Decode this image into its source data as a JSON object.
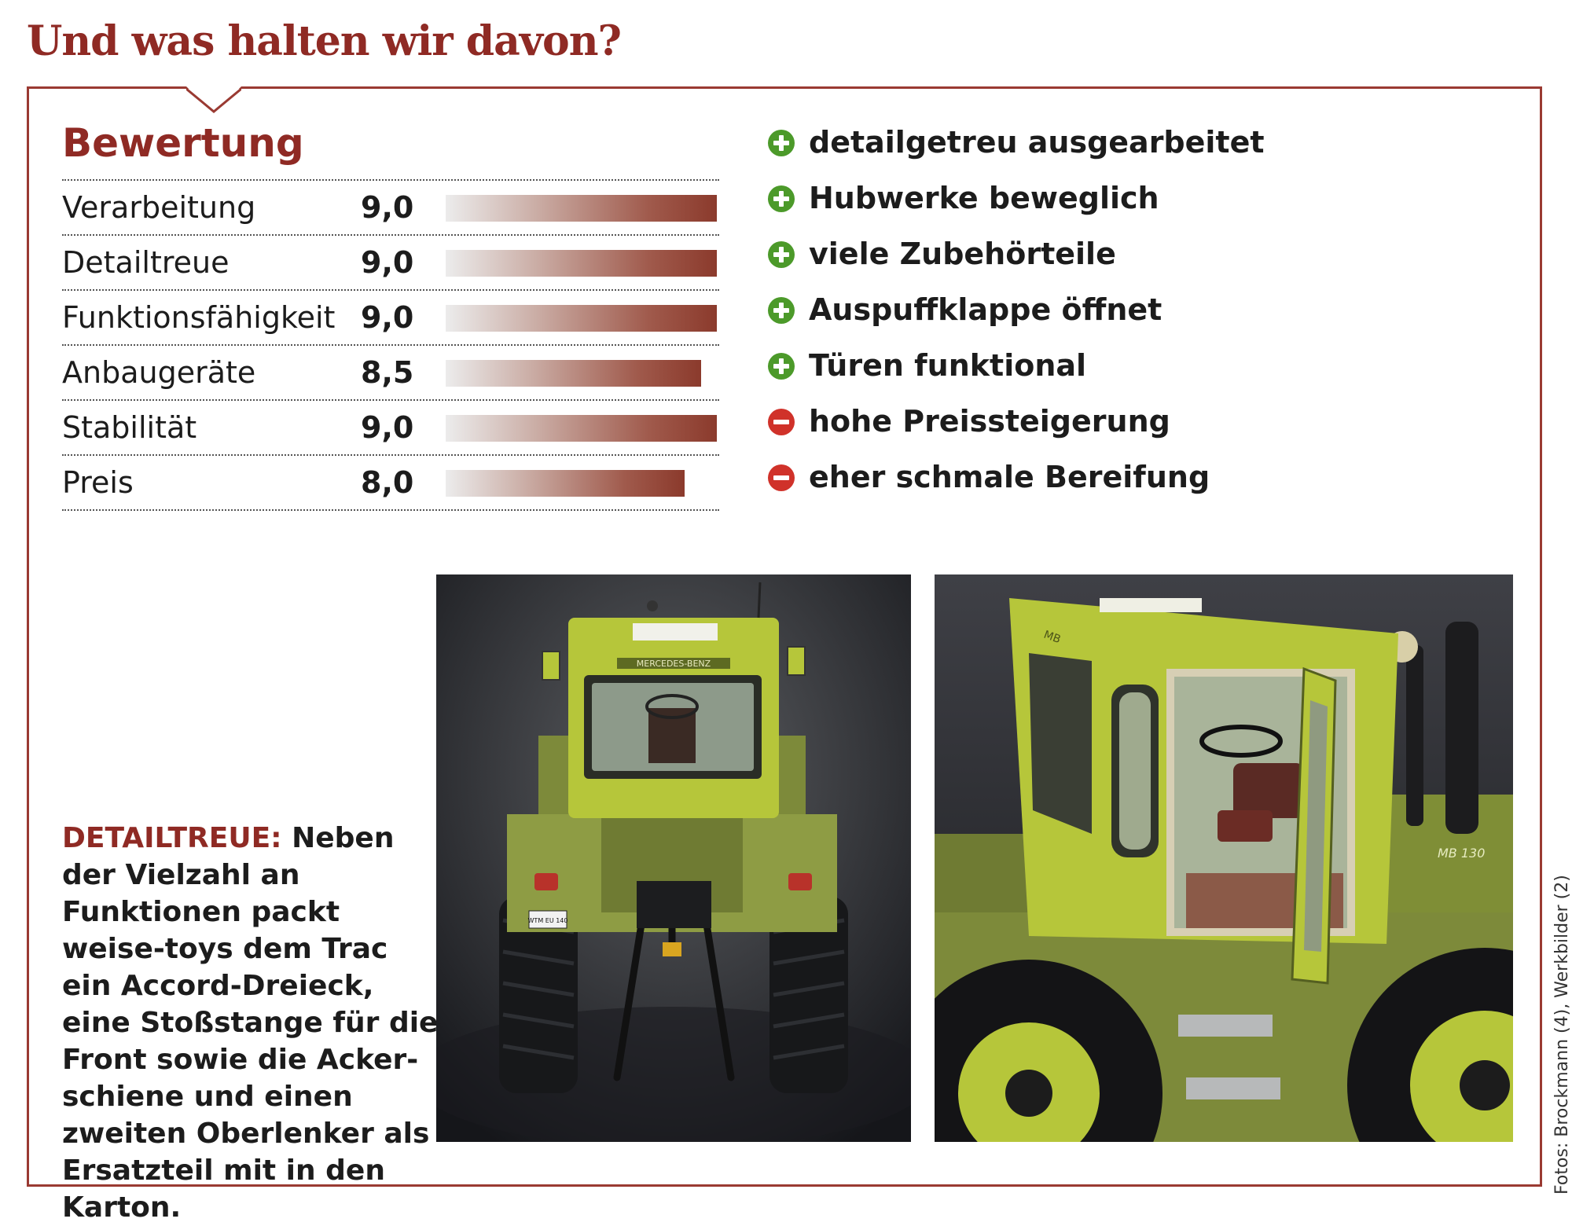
{
  "headline": "Und was halten wir davon?",
  "rating": {
    "title": "Bewertung",
    "rows": [
      {
        "label": "Verarbeitung",
        "value": "9,0",
        "score": 9.0
      },
      {
        "label": "Detailtreue",
        "value": "9,0",
        "score": 9.0
      },
      {
        "label": "Funktionsfähigkeit",
        "value": "9,0",
        "score": 9.0
      },
      {
        "label": "Anbaugeräte",
        "value": "8,5",
        "score": 8.5
      },
      {
        "label": "Stabilität",
        "value": "9,0",
        "score": 9.0
      },
      {
        "label": "Preis",
        "value": "8,0",
        "score": 8.0
      }
    ],
    "bar_scale_max": 9.0
  },
  "pros_cons": [
    {
      "type": "plus",
      "icon": "plus-circle-icon",
      "text": "detailgetreu ausgearbeitet"
    },
    {
      "type": "plus",
      "icon": "plus-circle-icon",
      "text": "Hubwerke beweglich"
    },
    {
      "type": "plus",
      "icon": "plus-circle-icon",
      "text": "viele Zubehörteile"
    },
    {
      "type": "plus",
      "icon": "plus-circle-icon",
      "text": "Auspuffklappe öffnet"
    },
    {
      "type": "plus",
      "icon": "plus-circle-icon",
      "text": "Türen funktional"
    },
    {
      "type": "minus",
      "icon": "minus-circle-icon",
      "text": "hohe Preissteigerung"
    },
    {
      "type": "minus",
      "icon": "minus-circle-icon",
      "text": "eher schmale Bereifung"
    }
  ],
  "caption": {
    "lead": "DETAILTREUE:",
    "text": " Neben der Vielzahl an Funktionen packt weise-toys dem Trac ein Accord-Dreieck, eine Stoßstange für die Front sowie  die Acker­schiene und einen zwei­ten Oberlenker als Ersatz­teil mit in den Karton."
  },
  "photos": {
    "left": {
      "brand_plate": "MERCEDES-BENZ",
      "license_plate": "WTM EU 140"
    },
    "right": {
      "side_badge": "MB",
      "side_model": "MB 130"
    }
  },
  "credit": "Fotos: Brockmann (4), Werkbilder (2)",
  "colors": {
    "accent": "#8f2a24",
    "plus": "#4c9a2a",
    "minus": "#d0322a",
    "tractor": "#b6c63a"
  }
}
